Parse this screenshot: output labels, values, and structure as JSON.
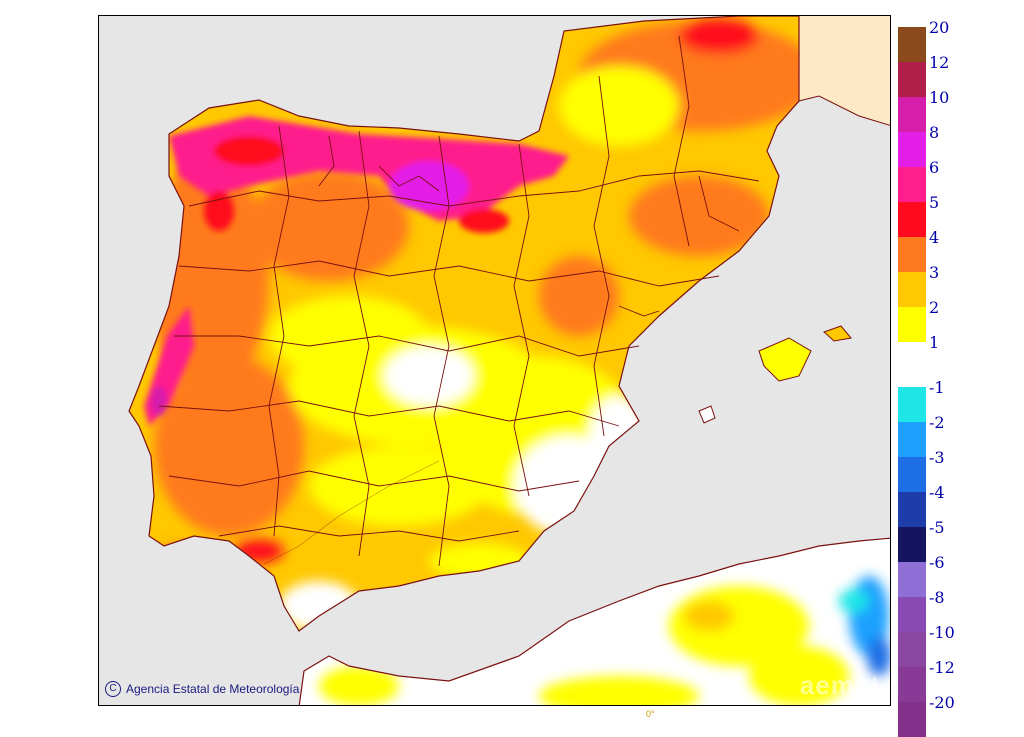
{
  "credit": {
    "text": "Agencia Estatal de Meteorología",
    "copyright_symbol": "C"
  },
  "watermark": "aemet",
  "lon_tick": "0°",
  "legend": {
    "positive": [
      {
        "label": "20",
        "color": "#8a4a1c"
      },
      {
        "label": "12",
        "color": "#b01e4a"
      },
      {
        "label": "10",
        "color": "#d51eaa"
      },
      {
        "label": "8",
        "color": "#e31ee6"
      },
      {
        "label": "6",
        "color": "#ff1e8c"
      },
      {
        "label": "5",
        "color": "#ff0a1e"
      },
      {
        "label": "4",
        "color": "#ff7a1e"
      },
      {
        "label": "3",
        "color": "#ffc800"
      },
      {
        "label": "2",
        "color": "#ffff00"
      },
      {
        "label": "1",
        "color": "#ffffff"
      }
    ],
    "negative": [
      {
        "label": "-1",
        "color": "#1ee6e6"
      },
      {
        "label": "-2",
        "color": "#1ea0ff"
      },
      {
        "label": "-3",
        "color": "#1e6ee6"
      },
      {
        "label": "-4",
        "color": "#1e3caa"
      },
      {
        "label": "-5",
        "color": "#14145f"
      },
      {
        "label": "-6",
        "color": "#8f6fd6"
      },
      {
        "label": "-8",
        "color": "#8a4ab4"
      },
      {
        "label": "-10",
        "color": "#8a46a0"
      },
      {
        "label": "-12",
        "color": "#873a96"
      },
      {
        "label": "-20",
        "color": "#82308a"
      }
    ]
  },
  "colors": {
    "sea": "#e6e6e6",
    "border": "#7a1010",
    "france": "#fde9c6"
  }
}
